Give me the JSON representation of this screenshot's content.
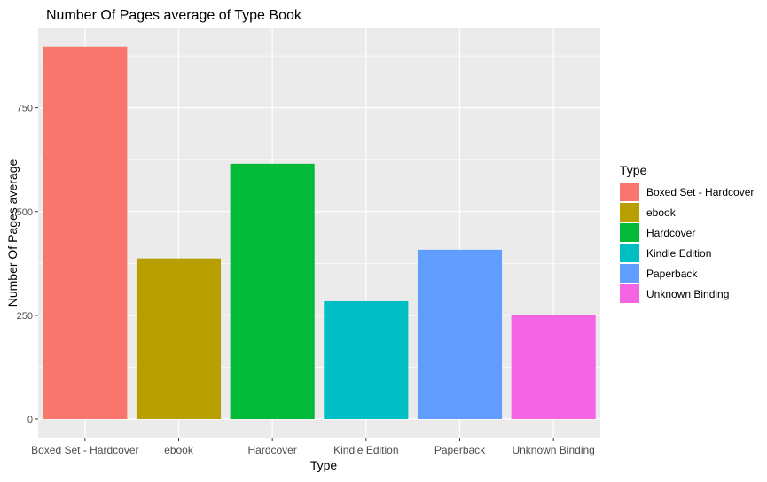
{
  "chart_data": {
    "type": "bar",
    "title": "Number Of Pages average of Type Book",
    "xlabel": "Type",
    "ylabel": "Number Of Pages average",
    "categories": [
      "Boxed Set - Hardcover",
      "ebook",
      "Hardcover",
      "Kindle Edition",
      "Paperback",
      "Unknown Binding"
    ],
    "values": [
      897,
      387,
      615,
      284,
      408,
      251
    ],
    "colors": [
      "#F8766D",
      "#B79F00",
      "#00BA38",
      "#00BFC4",
      "#619CFF",
      "#F564E3"
    ],
    "yticks": [
      0,
      250,
      500,
      750
    ],
    "ylim": [
      -45,
      950
    ],
    "grid": true,
    "panel_background": "#EBEBEB",
    "legend": {
      "title": "Type",
      "position": "right",
      "items": [
        "Boxed Set - Hardcover",
        "ebook",
        "Hardcover",
        "Kindle Edition",
        "Paperback",
        "Unknown Binding"
      ]
    }
  }
}
